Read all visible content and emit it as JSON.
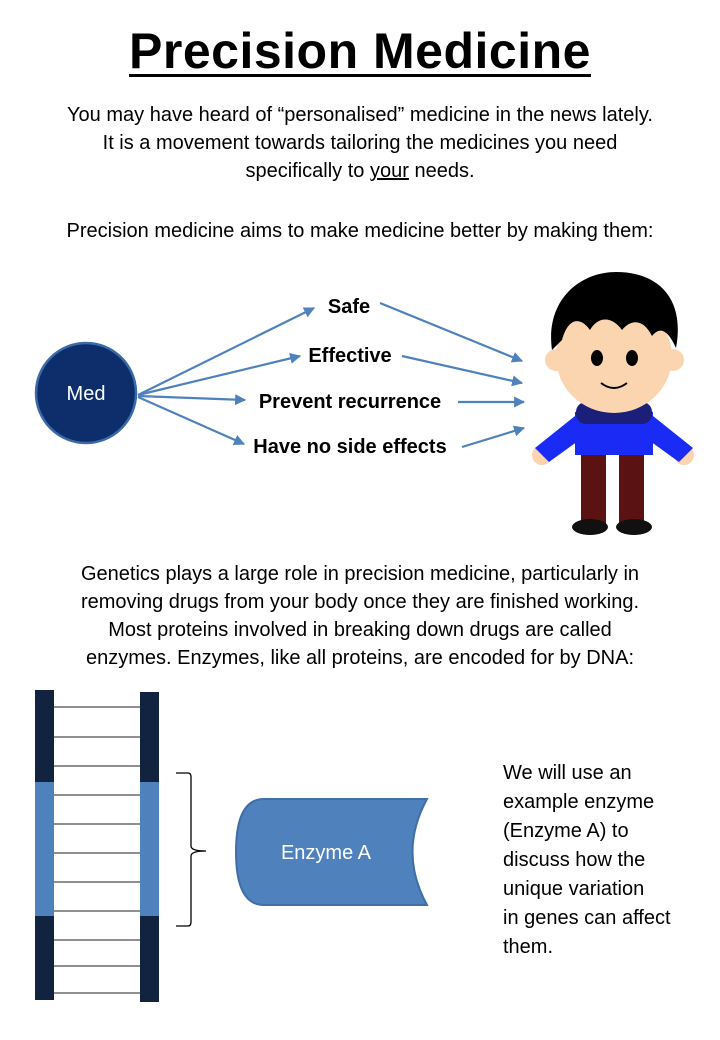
{
  "title": "Precision Medicine",
  "intro": {
    "line1": "You may have heard of “personalised” medicine in the news lately.",
    "line2": "It is a movement towards tailoring the medicines you need",
    "line3_before": "specifically to ",
    "line3_underlined": "your",
    "line3_after": " needs."
  },
  "aims": "Precision medicine aims to make medicine better by making them:",
  "med_diagram": {
    "circle_label": "Med",
    "benefits": [
      "Safe",
      "Effective",
      "Prevent recurrence",
      "Have no side effects"
    ],
    "colors": {
      "circle_fill": "#0d2e6b",
      "arrow": "#4f81bd"
    }
  },
  "genetics": [
    "Genetics plays a large role in precision medicine, particularly in",
    "removing drugs from your body once they are finished working.",
    "Most proteins involved in breaking down drugs are called",
    "enzymes. Enzymes, like all proteins, are encoded for by DNA:"
  ],
  "dna_diagram": {
    "enzyme_label": "Enzyme A",
    "colors": {
      "rail_dark": "#12233f",
      "rail_light": "#4f81bd",
      "enzyme_fill": "#4f81bd"
    }
  },
  "side_text": [
    "We will use an",
    "example enzyme",
    "(Enzyme A) to",
    "discuss how the",
    "unique variation",
    "in genes can affect",
    "them."
  ]
}
